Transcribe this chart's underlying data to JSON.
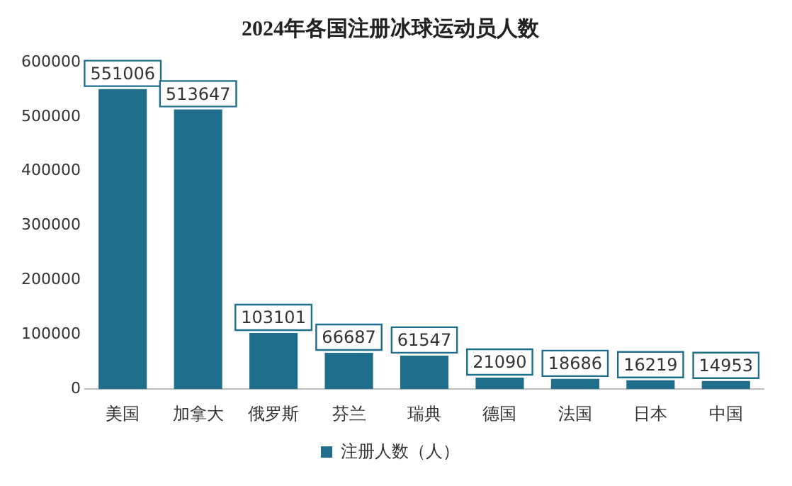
{
  "chart_data": {
    "type": "bar",
    "title": "2024年各国注册冰球运动员人数",
    "categories": [
      "美国",
      "加拿大",
      "俄罗斯",
      "芬兰",
      "瑞典",
      "德国",
      "法国",
      "日本",
      "中国"
    ],
    "series": [
      {
        "name": "注册人数（人）",
        "color": "#1f6e8c",
        "values": [
          551006,
          513647,
          103101,
          66687,
          61547,
          21090,
          18686,
          16219,
          14953
        ]
      }
    ],
    "ylim": [
      0,
      600000
    ],
    "yticks": [
      0,
      100000,
      200000,
      300000,
      400000,
      500000,
      600000
    ],
    "grid": false,
    "legend": "bottom",
    "data_labels": true
  }
}
